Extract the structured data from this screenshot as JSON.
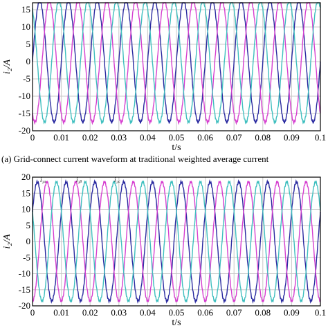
{
  "colors": {
    "phase_a": "#2a2aa0",
    "phase_b": "#d63fd0",
    "phase_c": "#3fbfbf",
    "grid": "#c8c8c8",
    "axis": "#000000"
  },
  "chart_data": [
    {
      "type": "line",
      "title": "",
      "caption": "(a) Grid-connect current waveform at traditional weighted average current",
      "xlabel": "t/s",
      "ylabel": "i₂/A",
      "xlim": [
        0,
        0.1
      ],
      "ylim": [
        -20,
        17
      ],
      "grid": true,
      "xticks": [
        "0",
        "0.01",
        "0.02",
        "0.03",
        "0.04",
        "0.05",
        "0.06",
        "0.07",
        "0.08",
        "0.09",
        "0.1"
      ],
      "yticks": [
        "15",
        "10",
        "5",
        "0",
        "-5",
        "-10",
        "-15",
        "-20"
      ],
      "frequency_hz": 100,
      "amplitude_a": 17.5,
      "series": [
        {
          "key": "a",
          "phase_deg": 0,
          "color": "#2a2aa0"
        },
        {
          "key": "b",
          "phase_deg": -120,
          "color": "#d63fd0"
        },
        {
          "key": "c",
          "phase_deg": 120,
          "color": "#3fbfbf"
        }
      ]
    },
    {
      "type": "line",
      "title": "",
      "caption": "",
      "xlabel": "t/s",
      "ylabel": "i₂/A",
      "xlim": [
        0,
        0.1
      ],
      "ylim": [
        -20,
        20
      ],
      "grid": true,
      "xticks": [
        "0",
        "0.01",
        "0.02",
        "0.03",
        "0.04",
        "0.05",
        "0.06",
        "0.07",
        "0.08",
        "0.09",
        "0.1"
      ],
      "yticks": [
        "20",
        "15",
        "10",
        "5",
        "0",
        "-5",
        "-10",
        "-15",
        "-20"
      ],
      "frequency_hz": 100,
      "amplitude_a": 18.5,
      "series": [
        {
          "name": "i₂ₐ",
          "key": "a",
          "phase_deg": 30,
          "color": "#2a2aa0"
        },
        {
          "name": "i₂ᵦ",
          "key": "b",
          "phase_deg": -90,
          "color": "#d63fd0"
        },
        {
          "name": "i₂꜀",
          "key": "c",
          "phase_deg": 150,
          "color": "#3fbfbf"
        }
      ]
    }
  ]
}
